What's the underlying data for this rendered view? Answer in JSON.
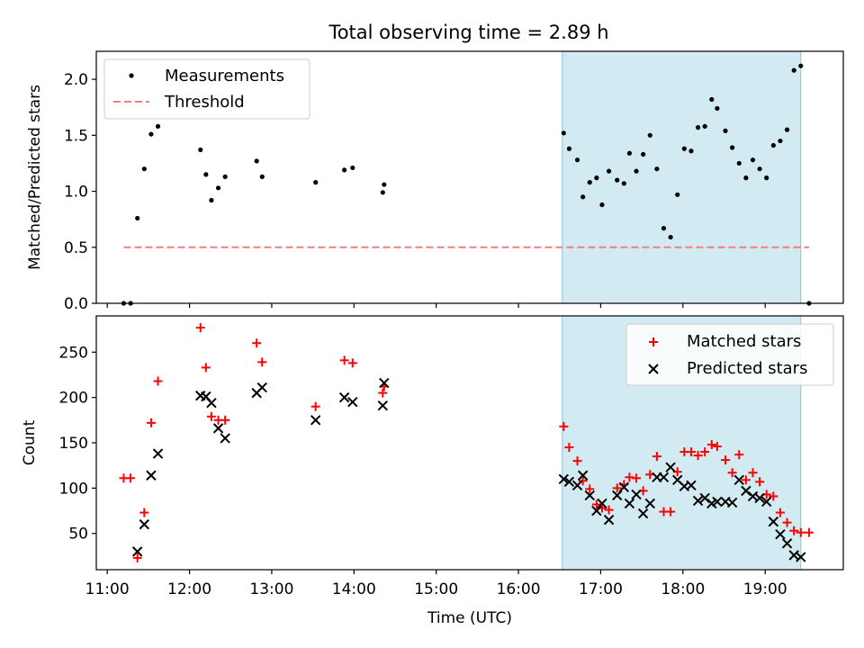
{
  "title": "Total observing time = 2.89 h",
  "xlabel": "Time (UTC)",
  "highlight_color": "#add8e6",
  "chart_data": [
    {
      "type": "scatter",
      "panel": "top",
      "ylabel": "Matched/Predicted stars",
      "xlim": [
        "10:52",
        "19:57"
      ],
      "ylim": [
        0,
        2.25
      ],
      "yticks": [
        0.0,
        0.5,
        1.0,
        1.5,
        2.0
      ],
      "ytick_labels": [
        "0.0",
        "0.5",
        "1.0",
        "1.5",
        "2.0"
      ],
      "shaded_span": [
        "16:32",
        "19:26"
      ],
      "threshold": {
        "name": "Threshold",
        "value": 0.5,
        "x_range": [
          "11:12",
          "19:32"
        ],
        "color": "#f08080",
        "style": "dashed"
      },
      "legend": {
        "location": "upper left",
        "entries": [
          "Measurements",
          "Threshold"
        ]
      },
      "series": [
        {
          "name": "Measurements",
          "marker": "dot",
          "color": "#000000",
          "points": [
            [
              "11:12",
              0.0
            ],
            [
              "11:17",
              0.0
            ],
            [
              "11:22",
              0.76
            ],
            [
              "11:27",
              1.2
            ],
            [
              "11:32",
              1.51
            ],
            [
              "11:37",
              1.58
            ],
            [
              "12:08",
              1.37
            ],
            [
              "12:12",
              1.15
            ],
            [
              "12:16",
              0.92
            ],
            [
              "12:21",
              1.03
            ],
            [
              "12:26",
              1.13
            ],
            [
              "12:49",
              1.27
            ],
            [
              "12:53",
              1.13
            ],
            [
              "13:32",
              1.08
            ],
            [
              "13:53",
              1.19
            ],
            [
              "13:59",
              1.21
            ],
            [
              "14:21",
              0.99
            ],
            [
              "14:22",
              1.06
            ],
            [
              "16:33",
              1.52
            ],
            [
              "16:37",
              1.38
            ],
            [
              "16:43",
              1.28
            ],
            [
              "16:47",
              0.95
            ],
            [
              "16:52",
              1.08
            ],
            [
              "16:57",
              1.12
            ],
            [
              "17:01",
              0.88
            ],
            [
              "17:06",
              1.18
            ],
            [
              "17:12",
              1.1
            ],
            [
              "17:17",
              1.07
            ],
            [
              "17:21",
              1.34
            ],
            [
              "17:26",
              1.18
            ],
            [
              "17:31",
              1.33
            ],
            [
              "17:36",
              1.5
            ],
            [
              "17:41",
              1.2
            ],
            [
              "17:46",
              0.67
            ],
            [
              "17:51",
              0.59
            ],
            [
              "17:56",
              0.97
            ],
            [
              "18:01",
              1.38
            ],
            [
              "18:06",
              1.36
            ],
            [
              "18:11",
              1.57
            ],
            [
              "18:16",
              1.58
            ],
            [
              "18:21",
              1.82
            ],
            [
              "18:25",
              1.74
            ],
            [
              "18:31",
              1.54
            ],
            [
              "18:36",
              1.39
            ],
            [
              "18:41",
              1.25
            ],
            [
              "18:46",
              1.12
            ],
            [
              "18:51",
              1.28
            ],
            [
              "18:56",
              1.2
            ],
            [
              "19:01",
              1.12
            ],
            [
              "19:06",
              1.41
            ],
            [
              "19:11",
              1.45
            ],
            [
              "19:16",
              1.55
            ],
            [
              "19:21",
              2.08
            ],
            [
              "19:26",
              2.12
            ],
            [
              "19:32",
              0.0
            ]
          ]
        }
      ]
    },
    {
      "type": "scatter",
      "panel": "bottom",
      "ylabel": "Count",
      "xlim": [
        "10:52",
        "19:57"
      ],
      "ylim": [
        10,
        290
      ],
      "yticks": [
        50,
        100,
        150,
        200,
        250
      ],
      "ytick_labels": [
        "50",
        "100",
        "150",
        "200",
        "250"
      ],
      "xticks": [
        "11:00",
        "12:00",
        "13:00",
        "14:00",
        "15:00",
        "16:00",
        "17:00",
        "18:00",
        "19:00"
      ],
      "xtick_labels": [
        "11:00",
        "12:00",
        "13:00",
        "14:00",
        "15:00",
        "16:00",
        "17:00",
        "18:00",
        "19:00"
      ],
      "shaded_span": [
        "16:32",
        "19:26"
      ],
      "legend": {
        "location": "upper right",
        "entries": [
          "Matched stars",
          "Predicted stars"
        ]
      },
      "series": [
        {
          "name": "Matched stars",
          "marker": "plus",
          "color": "#ff0000",
          "points": [
            [
              "11:12",
              111
            ],
            [
              "11:17",
              111
            ],
            [
              "11:22",
              23
            ],
            [
              "11:27",
              73
            ],
            [
              "11:32",
              172
            ],
            [
              "11:37",
              218
            ],
            [
              "12:08",
              277
            ],
            [
              "12:12",
              233
            ],
            [
              "12:16",
              179
            ],
            [
              "12:21",
              175
            ],
            [
              "12:26",
              175
            ],
            [
              "12:49",
              260
            ],
            [
              "12:53",
              239
            ],
            [
              "13:32",
              190
            ],
            [
              "13:53",
              241
            ],
            [
              "13:59",
              238
            ],
            [
              "14:21",
              205
            ],
            [
              "14:22",
              212
            ],
            [
              "16:33",
              168
            ],
            [
              "16:37",
              145
            ],
            [
              "16:43",
              130
            ],
            [
              "16:47",
              108
            ],
            [
              "16:52",
              99
            ],
            [
              "16:57",
              82
            ],
            [
              "17:01",
              78
            ],
            [
              "17:06",
              76
            ],
            [
              "17:12",
              100
            ],
            [
              "17:17",
              104
            ],
            [
              "17:21",
              112
            ],
            [
              "17:26",
              111
            ],
            [
              "17:31",
              97
            ],
            [
              "17:36",
              115
            ],
            [
              "17:41",
              135
            ],
            [
              "17:46",
              74
            ],
            [
              "17:51",
              74
            ],
            [
              "17:56",
              118
            ],
            [
              "18:01",
              140
            ],
            [
              "18:06",
              140
            ],
            [
              "18:11",
              136
            ],
            [
              "18:16",
              140
            ],
            [
              "18:21",
              148
            ],
            [
              "18:25",
              146
            ],
            [
              "18:31",
              131
            ],
            [
              "18:36",
              117
            ],
            [
              "18:41",
              137
            ],
            [
              "18:46",
              109
            ],
            [
              "18:51",
              117
            ],
            [
              "18:56",
              107
            ],
            [
              "19:01",
              93
            ],
            [
              "19:06",
              91
            ],
            [
              "19:11",
              73
            ],
            [
              "19:16",
              62
            ],
            [
              "19:21",
              53
            ],
            [
              "19:26",
              51
            ],
            [
              "19:32",
              51
            ]
          ]
        },
        {
          "name": "Predicted stars",
          "marker": "x",
          "color": "#000000",
          "points": [
            [
              "11:22",
              30
            ],
            [
              "11:27",
              60
            ],
            [
              "11:32",
              114
            ],
            [
              "11:37",
              138
            ],
            [
              "12:08",
              202
            ],
            [
              "12:12",
              201
            ],
            [
              "12:16",
              194
            ],
            [
              "12:21",
              166
            ],
            [
              "12:26",
              155
            ],
            [
              "12:49",
              205
            ],
            [
              "12:53",
              211
            ],
            [
              "13:32",
              175
            ],
            [
              "13:53",
              200
            ],
            [
              "13:59",
              195
            ],
            [
              "14:21",
              191
            ],
            [
              "14:22",
              216
            ],
            [
              "16:33",
              110
            ],
            [
              "16:37",
              107
            ],
            [
              "16:43",
              103
            ],
            [
              "16:47",
              114
            ],
            [
              "16:52",
              92
            ],
            [
              "16:57",
              75
            ],
            [
              "17:01",
              83
            ],
            [
              "17:06",
              65
            ],
            [
              "17:12",
              92
            ],
            [
              "17:17",
              101
            ],
            [
              "17:21",
              83
            ],
            [
              "17:26",
              93
            ],
            [
              "17:31",
              72
            ],
            [
              "17:36",
              83
            ],
            [
              "17:41",
              112
            ],
            [
              "17:46",
              112
            ],
            [
              "17:51",
              123
            ],
            [
              "17:56",
              109
            ],
            [
              "18:01",
              102
            ],
            [
              "18:06",
              103
            ],
            [
              "18:11",
              86
            ],
            [
              "18:16",
              89
            ],
            [
              "18:21",
              83
            ],
            [
              "18:25",
              85
            ],
            [
              "18:31",
              85
            ],
            [
              "18:36",
              84
            ],
            [
              "18:41",
              109
            ],
            [
              "18:46",
              97
            ],
            [
              "18:51",
              91
            ],
            [
              "18:56",
              89
            ],
            [
              "19:01",
              85
            ],
            [
              "19:06",
              63
            ],
            [
              "19:11",
              49
            ],
            [
              "19:16",
              39
            ],
            [
              "19:21",
              26
            ],
            [
              "19:26",
              24
            ]
          ]
        }
      ]
    }
  ]
}
